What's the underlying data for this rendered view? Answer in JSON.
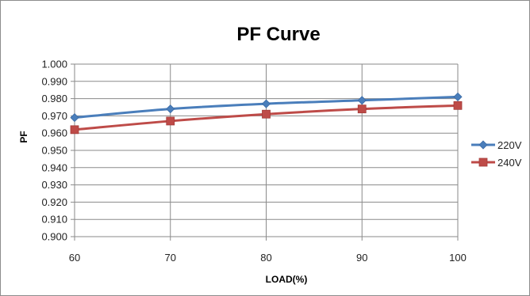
{
  "chart_data": {
    "type": "line",
    "title": "PF Curve",
    "xlabel": "LOAD(%)",
    "ylabel": "PF",
    "x": [
      60,
      70,
      80,
      90,
      100
    ],
    "x_tick_labels": [
      "60",
      "70",
      "80",
      "90",
      "100"
    ],
    "ylim": [
      0.9,
      1.0
    ],
    "y_tick_values": [
      0.9,
      0.91,
      0.92,
      0.93,
      0.94,
      0.95,
      0.96,
      0.97,
      0.98,
      0.99,
      1.0
    ],
    "y_tick_labels": [
      "0.900",
      "0.910",
      "0.920",
      "0.930",
      "0.940",
      "0.950",
      "0.960",
      "0.970",
      "0.980",
      "0.990",
      "1.000"
    ],
    "grid": true,
    "legend_position": "right",
    "series": [
      {
        "name": "220V",
        "values": [
          0.969,
          0.974,
          0.977,
          0.979,
          0.981
        ],
        "color": "#4a7ebb",
        "marker": "diamond"
      },
      {
        "name": "240V",
        "values": [
          0.962,
          0.967,
          0.971,
          0.974,
          0.976
        ],
        "color": "#be4b48",
        "marker": "square"
      }
    ]
  }
}
